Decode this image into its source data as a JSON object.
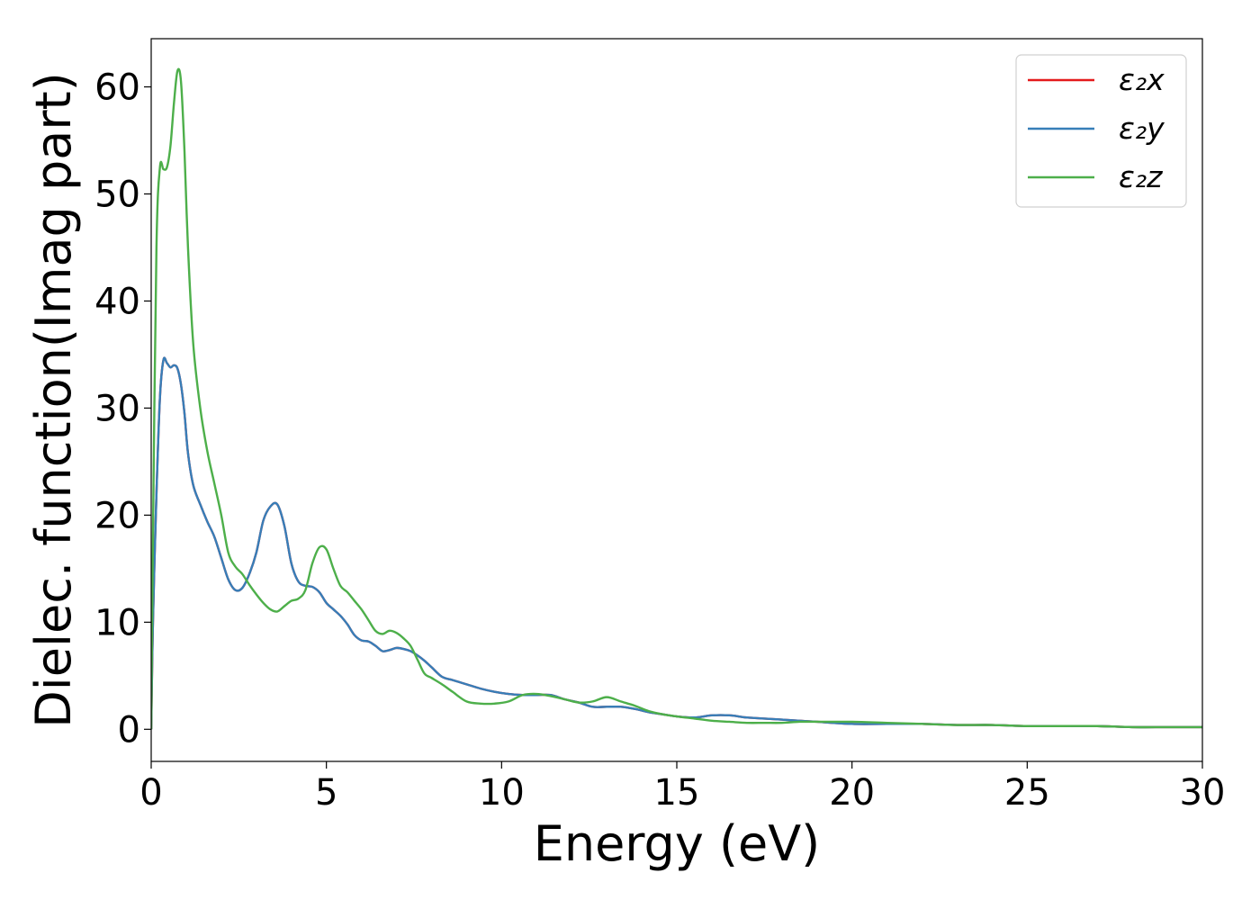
{
  "chart_data": {
    "type": "line",
    "xlabel": "Energy (eV)",
    "ylabel": "Dielec. function(Imag part)",
    "xlim": [
      0,
      30
    ],
    "ylim": [
      -3,
      64.5
    ],
    "xticks": [
      0,
      5,
      10,
      15,
      20,
      25,
      30
    ],
    "yticks": [
      0,
      10,
      20,
      30,
      40,
      50,
      60
    ],
    "xtick_labels": [
      "0",
      "5",
      "10",
      "15",
      "20",
      "25",
      "30"
    ],
    "ytick_labels": [
      "0",
      "10",
      "20",
      "30",
      "40",
      "50",
      "60"
    ],
    "grid": false,
    "legend_position": "top-right",
    "x": [
      0,
      0.05,
      0.15,
      0.25,
      0.35,
      0.45,
      0.55,
      0.65,
      0.75,
      0.85,
      0.95,
      1.05,
      1.2,
      1.4,
      1.6,
      1.8,
      2.0,
      2.2,
      2.4,
      2.6,
      2.8,
      3.0,
      3.2,
      3.4,
      3.6,
      3.8,
      4.0,
      4.2,
      4.4,
      4.6,
      4.8,
      5.0,
      5.2,
      5.4,
      5.6,
      5.8,
      6.0,
      6.2,
      6.4,
      6.6,
      6.8,
      7.0,
      7.2,
      7.4,
      7.6,
      7.8,
      8.0,
      8.3,
      8.6,
      9.0,
      9.4,
      9.8,
      10.2,
      10.6,
      11.0,
      11.4,
      11.8,
      12.2,
      12.6,
      13.0,
      13.4,
      13.8,
      14.2,
      14.6,
      15.0,
      15.5,
      16.0,
      16.5,
      17.0,
      17.5,
      18.0,
      18.5,
      19.0,
      20.0,
      21.0,
      22.0,
      23.0,
      24.0,
      25.0,
      26.0,
      27.0,
      28.0,
      29.0,
      30.0
    ],
    "series": [
      {
        "name": "ε₂x",
        "color": "#e41a1c",
        "values": [
          0,
          10,
          22,
          31,
          34.5,
          34.2,
          33.8,
          34.0,
          33.7,
          32.2,
          29.5,
          25.8,
          22.8,
          21.0,
          19.4,
          18.0,
          16.0,
          14.0,
          13.0,
          13.2,
          14.5,
          16.5,
          19.5,
          20.8,
          21.0,
          19.0,
          15.5,
          13.8,
          13.4,
          13.3,
          12.8,
          11.8,
          11.2,
          10.6,
          9.8,
          8.8,
          8.3,
          8.2,
          7.8,
          7.3,
          7.4,
          7.6,
          7.5,
          7.3,
          6.9,
          6.4,
          5.8,
          4.9,
          4.6,
          4.2,
          3.8,
          3.5,
          3.3,
          3.2,
          3.2,
          3.2,
          2.8,
          2.5,
          2.1,
          2.1,
          2.1,
          1.9,
          1.6,
          1.4,
          1.2,
          1.1,
          1.3,
          1.3,
          1.1,
          1.0,
          0.9,
          0.8,
          0.7,
          0.5,
          0.5,
          0.5,
          0.4,
          0.4,
          0.3,
          0.3,
          0.3,
          0.2,
          0.2,
          0.2
        ]
      },
      {
        "name": "ε₂y",
        "color": "#377eb8",
        "values": [
          0,
          10,
          22,
          31,
          34.5,
          34.2,
          33.8,
          34.0,
          33.7,
          32.2,
          29.5,
          25.8,
          22.8,
          21.0,
          19.4,
          18.0,
          16.0,
          14.0,
          13.0,
          13.2,
          14.5,
          16.5,
          19.5,
          20.8,
          21.0,
          19.0,
          15.5,
          13.8,
          13.4,
          13.3,
          12.8,
          11.8,
          11.2,
          10.6,
          9.8,
          8.8,
          8.3,
          8.2,
          7.8,
          7.3,
          7.4,
          7.6,
          7.5,
          7.3,
          6.9,
          6.4,
          5.8,
          4.9,
          4.6,
          4.2,
          3.8,
          3.5,
          3.3,
          3.2,
          3.2,
          3.2,
          2.8,
          2.5,
          2.1,
          2.1,
          2.1,
          1.9,
          1.6,
          1.4,
          1.2,
          1.1,
          1.3,
          1.3,
          1.1,
          1.0,
          0.9,
          0.8,
          0.7,
          0.5,
          0.5,
          0.5,
          0.4,
          0.4,
          0.3,
          0.3,
          0.3,
          0.2,
          0.2,
          0.2
        ]
      },
      {
        "name": "ε₂z",
        "color": "#4daf4a",
        "values": [
          0,
          18,
          45,
          52.5,
          52.3,
          52.5,
          54.5,
          58.5,
          61.5,
          60.5,
          54.0,
          45.0,
          36.0,
          30.0,
          26.0,
          23.0,
          20.0,
          16.5,
          15.2,
          14.5,
          13.5,
          12.6,
          11.8,
          11.2,
          11.0,
          11.5,
          12.0,
          12.2,
          13.0,
          15.5,
          17.0,
          16.8,
          15.0,
          13.4,
          12.8,
          12.0,
          11.2,
          10.2,
          9.2,
          8.9,
          9.2,
          9.0,
          8.5,
          7.8,
          6.5,
          5.2,
          4.8,
          4.2,
          3.5,
          2.6,
          2.4,
          2.4,
          2.6,
          3.2,
          3.3,
          3.1,
          2.8,
          2.5,
          2.6,
          3.0,
          2.6,
          2.2,
          1.7,
          1.4,
          1.2,
          1.0,
          0.8,
          0.7,
          0.6,
          0.6,
          0.6,
          0.7,
          0.7,
          0.7,
          0.6,
          0.5,
          0.4,
          0.4,
          0.3,
          0.3,
          0.3,
          0.2,
          0.2,
          0.2
        ]
      }
    ]
  }
}
